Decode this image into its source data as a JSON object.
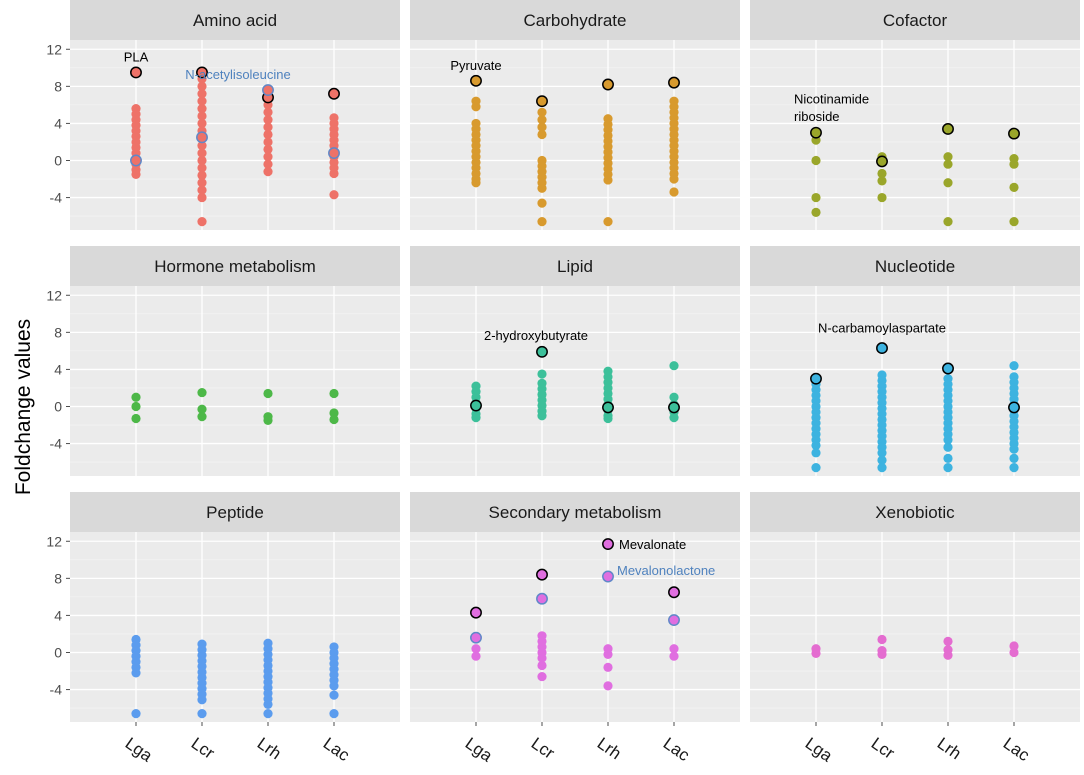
{
  "chart_data": {
    "type": "scatter",
    "title": "",
    "xlabel": "",
    "ylabel": "Foldchange values",
    "facet_grid": "3x3",
    "ylim": [
      -7.5,
      13
    ],
    "y_ticks": [
      12,
      8,
      4,
      0,
      -4
    ],
    "categories": [
      "Lga",
      "Lcr",
      "Lrh",
      "Lac"
    ],
    "grid": true,
    "highlight_styles": {
      "black": "#000000",
      "blue": "#6088c8"
    },
    "panels": [
      {
        "name": "Amino acid",
        "color": "#ee7268",
        "points": {
          "Lga": [
            5.6,
            5.0,
            4.4,
            3.8,
            3.2,
            2.6,
            2.0,
            1.4,
            0.8,
            0.2,
            -0.4,
            -1.0,
            -1.5,
            9.5,
            0.0
          ],
          "Lcr": [
            9.5,
            8.8,
            8.0,
            7.2,
            6.4,
            5.6,
            4.8,
            4.0,
            3.2,
            2.4,
            1.6,
            0.8,
            0.0,
            -0.8,
            -1.6,
            -2.4,
            -3.2,
            -4.0,
            -6.6,
            2.5
          ],
          "Lrh": [
            7.6,
            6.8,
            6.0,
            5.2,
            4.4,
            3.6,
            2.8,
            2.0,
            1.2,
            0.4,
            -0.4,
            -1.2
          ],
          "Lac": [
            7.2,
            4.6,
            4.0,
            3.4,
            2.8,
            2.2,
            1.6,
            1.0,
            0.4,
            -0.2,
            -0.8,
            -1.4,
            -3.7,
            0.8
          ]
        },
        "highlighted": [
          {
            "category": "Lga",
            "value": 9.5,
            "style": "black"
          },
          {
            "category": "Lga",
            "value": 0.0,
            "style": "blue"
          },
          {
            "category": "Lcr",
            "value": 9.5,
            "style": "black"
          },
          {
            "category": "Lcr",
            "value": 2.5,
            "style": "blue"
          },
          {
            "category": "Lrh",
            "value": 6.8,
            "style": "black"
          },
          {
            "category": "Lrh",
            "value": 7.6,
            "style": "blue"
          },
          {
            "category": "Lac",
            "value": 7.2,
            "style": "black"
          },
          {
            "category": "Lac",
            "value": 0.8,
            "style": "blue"
          }
        ],
        "annotations": [
          {
            "text": "PLA",
            "category": "Lga",
            "value": 11.1,
            "color": "#000000",
            "anchor": "middle",
            "dx": 0
          },
          {
            "text": "N-acetylisoleucine",
            "category": "Lrh",
            "value": 9.2,
            "color": "#4f82be",
            "anchor": "middle",
            "dx": -30
          }
        ]
      },
      {
        "name": "Carbohydrate",
        "color": "#d89a2e",
        "points": {
          "Lga": [
            8.6,
            6.4,
            5.8,
            4.0,
            3.4,
            2.8,
            2.2,
            1.6,
            1.0,
            0.4,
            -0.2,
            -0.8,
            -1.4,
            -2.0,
            -2.4
          ],
          "Lcr": [
            6.4,
            5.2,
            4.4,
            3.6,
            2.8,
            0.0,
            -0.6,
            -1.2,
            -1.8,
            -2.4,
            -3.0,
            -4.6,
            -6.6
          ],
          "Lrh": [
            8.2,
            4.5,
            3.9,
            3.3,
            2.7,
            2.1,
            1.5,
            0.9,
            0.3,
            -0.3,
            -0.9,
            -1.5,
            -2.1,
            -6.6
          ],
          "Lac": [
            8.4,
            6.4,
            5.8,
            5.2,
            4.6,
            4.0,
            3.4,
            2.8,
            2.2,
            1.6,
            1.0,
            0.4,
            -0.2,
            -0.8,
            -1.4,
            -2.0,
            -3.4
          ]
        },
        "highlighted": [
          {
            "category": "Lga",
            "value": 8.6,
            "style": "black"
          },
          {
            "category": "Lcr",
            "value": 6.4,
            "style": "black"
          },
          {
            "category": "Lrh",
            "value": 8.2,
            "style": "black"
          },
          {
            "category": "Lac",
            "value": 8.4,
            "style": "black"
          }
        ],
        "annotations": [
          {
            "text": "Pyruvate",
            "category": "Lga",
            "value": 10.2,
            "color": "#000000",
            "anchor": "middle",
            "dx": 0
          }
        ]
      },
      {
        "name": "Cofactor",
        "color": "#9aa62a",
        "points": {
          "Lga": [
            3.0,
            2.2,
            0.0,
            -4.0,
            -5.6
          ],
          "Lcr": [
            0.4,
            -0.2,
            -1.4,
            -2.2,
            -4.0
          ],
          "Lrh": [
            3.4,
            0.4,
            -0.4,
            -2.4,
            -6.6
          ],
          "Lac": [
            2.9,
            0.2,
            -0.4,
            -2.9,
            -6.6
          ]
        },
        "highlighted": [
          {
            "category": "Lga",
            "value": 3.0,
            "style": "black"
          },
          {
            "category": "Lcr",
            "value": -0.1,
            "style": "black"
          },
          {
            "category": "Lrh",
            "value": 3.4,
            "style": "black"
          },
          {
            "category": "Lac",
            "value": 2.9,
            "style": "black"
          }
        ],
        "annotations": [
          {
            "text": "Nicotinamide",
            "category": "Lga",
            "value": 6.6,
            "color": "#000000",
            "anchor": "start",
            "dx": -22
          },
          {
            "text": "riboside",
            "category": "Lga",
            "value": 4.7,
            "color": "#000000",
            "anchor": "start",
            "dx": -22
          }
        ]
      },
      {
        "name": "Hormone metabolism",
        "color": "#4db848",
        "points": {
          "Lga": [
            1.0,
            0.0,
            -1.3
          ],
          "Lcr": [
            1.5,
            -0.3,
            -1.1
          ],
          "Lrh": [
            1.4,
            -1.1,
            -1.5
          ],
          "Lac": [
            1.4,
            -0.7,
            -1.4
          ]
        },
        "highlighted": [],
        "annotations": []
      },
      {
        "name": "Lipid",
        "color": "#3cc09a",
        "points": {
          "Lga": [
            2.2,
            1.6,
            1.0,
            0.4,
            -0.2,
            -0.8,
            -1.2
          ],
          "Lcr": [
            5.9,
            3.5,
            2.5,
            1.9,
            1.3,
            0.7,
            0.1,
            -0.5,
            -1.0
          ],
          "Lrh": [
            3.8,
            3.2,
            2.6,
            2.0,
            1.4,
            0.8,
            0.2,
            -0.4,
            -1.0,
            -1.3
          ],
          "Lac": [
            4.4,
            1.0,
            0.2,
            -0.6,
            -1.2
          ]
        },
        "highlighted": [
          {
            "category": "Lga",
            "value": 0.1,
            "style": "black"
          },
          {
            "category": "Lcr",
            "value": 5.9,
            "style": "black"
          },
          {
            "category": "Lrh",
            "value": -0.1,
            "style": "black"
          },
          {
            "category": "Lac",
            "value": -0.1,
            "style": "black"
          }
        ],
        "annotations": [
          {
            "text": "2-hydroxybutyrate",
            "category": "Lcr",
            "value": 7.6,
            "color": "#000000",
            "anchor": "middle",
            "dx": -6
          }
        ]
      },
      {
        "name": "Nucleotide",
        "color": "#3db3e0",
        "points": {
          "Lga": [
            3.0,
            2.4,
            1.8,
            1.2,
            0.6,
            0.0,
            -0.6,
            -1.2,
            -1.8,
            -2.4,
            -3.0,
            -3.6,
            -4.2,
            -5.0,
            -6.6
          ],
          "Lcr": [
            6.3,
            3.4,
            2.8,
            2.2,
            1.6,
            1.0,
            0.4,
            -0.2,
            -0.8,
            -1.4,
            -2.0,
            -2.6,
            -3.2,
            -3.8,
            -4.4,
            -5.0,
            -5.8,
            -6.6
          ],
          "Lrh": [
            4.1,
            3.0,
            2.4,
            1.8,
            1.2,
            0.6,
            0.0,
            -0.6,
            -1.2,
            -1.8,
            -2.4,
            -3.0,
            -3.6,
            -4.4,
            -5.6,
            -6.6
          ],
          "Lac": [
            4.4,
            3.2,
            2.6,
            2.0,
            1.4,
            0.8,
            0.2,
            -0.4,
            -1.0,
            -1.6,
            -2.2,
            -2.8,
            -3.4,
            -4.0,
            -4.6,
            -5.6,
            -6.6
          ]
        },
        "highlighted": [
          {
            "category": "Lga",
            "value": 3.0,
            "style": "black"
          },
          {
            "category": "Lcr",
            "value": 6.3,
            "style": "black"
          },
          {
            "category": "Lrh",
            "value": 4.1,
            "style": "black"
          },
          {
            "category": "Lac",
            "value": -0.1,
            "style": "black"
          }
        ],
        "annotations": [
          {
            "text": "N-carbamoylaspartate",
            "category": "Lcr",
            "value": 8.4,
            "color": "#000000",
            "anchor": "middle",
            "dx": 0
          }
        ]
      },
      {
        "name": "Peptide",
        "color": "#5b9cee",
        "points": {
          "Lga": [
            1.4,
            0.8,
            0.2,
            -0.4,
            -1.0,
            -1.6,
            -2.2,
            -6.6
          ],
          "Lcr": [
            0.9,
            0.3,
            -0.3,
            -0.9,
            -1.5,
            -2.1,
            -2.7,
            -3.3,
            -3.9,
            -4.5,
            -5.1,
            -6.6
          ],
          "Lrh": [
            1.0,
            0.4,
            -0.2,
            -0.8,
            -1.4,
            -2.0,
            -2.6,
            -3.2,
            -3.8,
            -4.4,
            -5.0,
            -5.6,
            -6.6
          ],
          "Lac": [
            0.6,
            0.0,
            -0.6,
            -1.2,
            -1.8,
            -2.4,
            -3.0,
            -3.6,
            -4.6,
            -6.6
          ]
        },
        "highlighted": [],
        "annotations": []
      },
      {
        "name": "Secondary metabolism",
        "color": "#e06ee0",
        "points": {
          "Lga": [
            4.3,
            1.6,
            0.4,
            -0.4
          ],
          "Lcr": [
            8.4,
            5.8,
            1.8,
            1.2,
            0.6,
            0.0,
            -0.6,
            -1.4,
            -2.6
          ],
          "Lrh": [
            11.7,
            8.2,
            0.4,
            -0.2,
            -1.6,
            -3.6
          ],
          "Lac": [
            6.5,
            3.5,
            0.4,
            -0.4
          ]
        },
        "highlighted": [
          {
            "category": "Lga",
            "value": 4.3,
            "style": "black"
          },
          {
            "category": "Lga",
            "value": 1.6,
            "style": "blue"
          },
          {
            "category": "Lcr",
            "value": 8.4,
            "style": "black"
          },
          {
            "category": "Lcr",
            "value": 5.8,
            "style": "blue"
          },
          {
            "category": "Lrh",
            "value": 11.7,
            "style": "black"
          },
          {
            "category": "Lrh",
            "value": 8.2,
            "style": "blue"
          },
          {
            "category": "Lac",
            "value": 6.5,
            "style": "black"
          },
          {
            "category": "Lac",
            "value": 3.5,
            "style": "blue"
          }
        ],
        "annotations": [
          {
            "text": "Mevalonate",
            "category": "Lrh",
            "value": 11.6,
            "color": "#000000",
            "anchor": "start",
            "dx": 11
          },
          {
            "text": "Mevalonolactone",
            "category": "Lrh",
            "value": 8.8,
            "color": "#4f82be",
            "anchor": "start",
            "dx": 9
          }
        ]
      },
      {
        "name": "Xenobiotic",
        "color": "#e46cd0",
        "points": {
          "Lga": [
            0.4,
            -0.1
          ],
          "Lcr": [
            1.4,
            0.2,
            -0.2
          ],
          "Lrh": [
            1.2,
            0.3,
            -0.3
          ],
          "Lac": [
            0.7,
            0.0
          ]
        },
        "highlighted": [],
        "annotations": []
      }
    ]
  }
}
